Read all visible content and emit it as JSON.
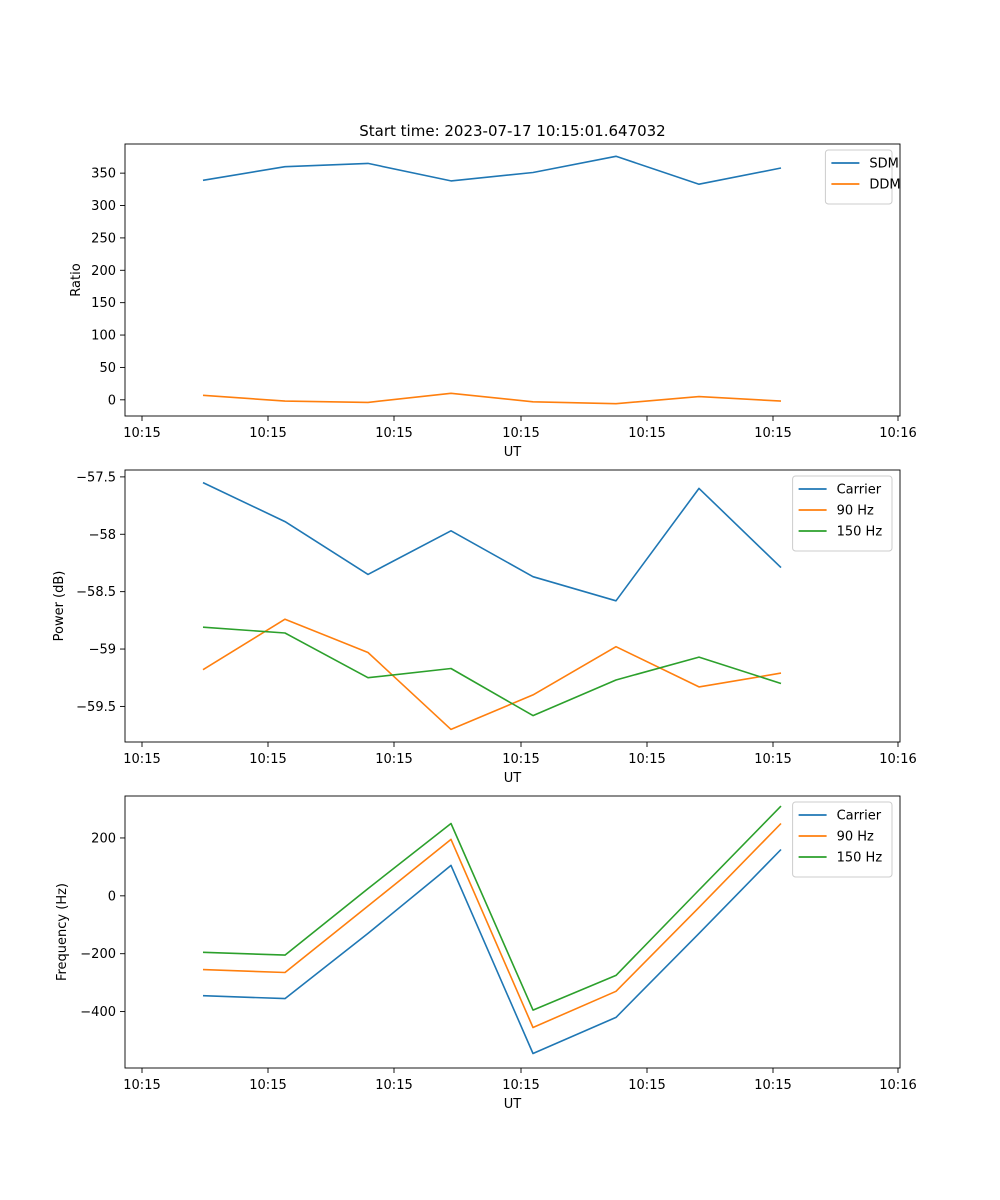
{
  "title": "Start time: 2023-07-17 10:15:01.647032",
  "chart_data": [
    {
      "type": "line",
      "ylabel": "Ratio",
      "xlabel": "UT",
      "x_ticks": [
        "10:15",
        "10:15",
        "10:15",
        "10:15",
        "10:15",
        "10:16"
      ],
      "ylim": [
        -25,
        395
      ],
      "y_ticks": [
        0,
        50,
        100,
        150,
        200,
        250,
        300,
        350
      ],
      "series": [
        {
          "name": "SDM",
          "color": "#1f77b4",
          "values": [
            339,
            360,
            365,
            338,
            351,
            376,
            333,
            358
          ]
        },
        {
          "name": "DDM",
          "color": "#ff7f0e",
          "values": [
            7,
            -2,
            -4,
            10,
            -3,
            -6,
            5,
            -2
          ]
        }
      ],
      "legend": "top-right"
    },
    {
      "type": "line",
      "ylabel": "Power (dB)",
      "xlabel": "UT",
      "x_ticks": [
        "10:15",
        "10:15",
        "10:15",
        "10:15",
        "10:15",
        "10:16"
      ],
      "ylim": [
        -59.81,
        -57.44
      ],
      "y_ticks": [
        -59.5,
        -59.0,
        -58.5,
        -58.0,
        -57.5
      ],
      "series": [
        {
          "name": "Carrier",
          "color": "#1f77b4",
          "values": [
            -57.55,
            -57.89,
            -58.35,
            -57.97,
            -58.37,
            -58.58,
            -57.6,
            -58.29
          ]
        },
        {
          "name": "90 Hz",
          "color": "#ff7f0e",
          "values": [
            -59.18,
            -58.74,
            -59.03,
            -59.7,
            -59.4,
            -58.98,
            -59.33,
            -59.21
          ]
        },
        {
          "name": "150 Hz",
          "color": "#2ca02c",
          "values": [
            -58.81,
            -58.86,
            -59.25,
            -59.17,
            -59.58,
            -59.27,
            -59.07,
            -59.3
          ]
        }
      ],
      "legend": "top-right"
    },
    {
      "type": "line",
      "ylabel": "Frequency (Hz)",
      "xlabel": "UT",
      "x_ticks": [
        "10:15",
        "10:15",
        "10:15",
        "10:15",
        "10:15",
        "10:16"
      ],
      "ylim": [
        -595,
        345
      ],
      "y_ticks": [
        -400,
        -200,
        0,
        200
      ],
      "series": [
        {
          "name": "Carrier",
          "color": "#1f77b4",
          "values": [
            -345,
            -355,
            -130,
            105,
            -545,
            -420,
            -130,
            160
          ]
        },
        {
          "name": "90 Hz",
          "color": "#ff7f0e",
          "values": [
            -255,
            -265,
            -35,
            195,
            -455,
            -330,
            -40,
            250
          ]
        },
        {
          "name": "150 Hz",
          "color": "#2ca02c",
          "values": [
            -195,
            -205,
            25,
            250,
            -395,
            -275,
            20,
            310
          ]
        }
      ],
      "legend": "top-right"
    }
  ]
}
